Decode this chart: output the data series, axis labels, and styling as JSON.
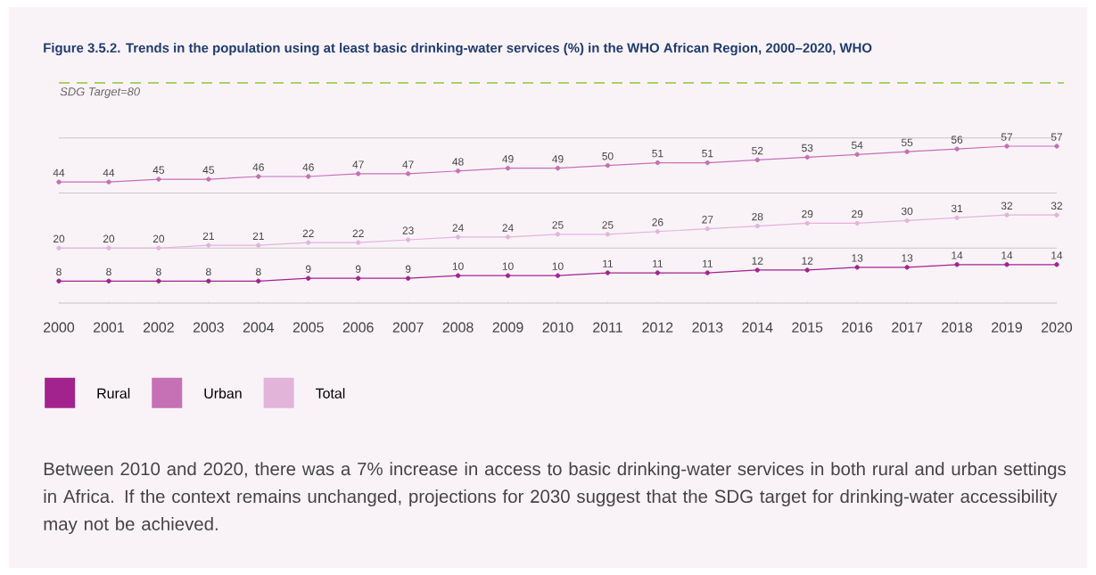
{
  "chart_data": {
    "type": "line",
    "title": "Figure 3.5.2. Trends in the population using at least basic drinking-water services (%) in the WHO African Region, 2000–2020, WHO",
    "x": [
      2000,
      2001,
      2002,
      2003,
      2004,
      2005,
      2006,
      2007,
      2008,
      2009,
      2010,
      2011,
      2012,
      2013,
      2014,
      2015,
      2016,
      2017,
      2018,
      2019,
      2020
    ],
    "series": [
      {
        "name": "Rural",
        "color": "#a3238e",
        "values": [
          8,
          8,
          8,
          8,
          8,
          9,
          9,
          9,
          10,
          10,
          10,
          11,
          11,
          11,
          12,
          12,
          13,
          13,
          14,
          14,
          14
        ]
      },
      {
        "name": "Urban",
        "color": "#c670b5",
        "values": [
          44,
          44,
          45,
          45,
          46,
          46,
          47,
          47,
          48,
          49,
          49,
          50,
          51,
          51,
          52,
          53,
          54,
          55,
          56,
          57,
          57
        ]
      },
      {
        "name": "Total",
        "color": "#e2b4da",
        "values": [
          20,
          20,
          20,
          21,
          21,
          22,
          22,
          23,
          24,
          24,
          25,
          25,
          26,
          27,
          28,
          29,
          29,
          30,
          31,
          32,
          32
        ]
      }
    ],
    "xlim": [
      2000,
      2020
    ],
    "xticks": [
      2000,
      2001,
      2002,
      2003,
      2004,
      2005,
      2006,
      2007,
      2008,
      2009,
      2010,
      2011,
      2012,
      2013,
      2014,
      2015,
      2016,
      2017,
      2018,
      2019,
      2020
    ],
    "ylim": [
      0,
      80
    ],
    "yticks": [
      {
        "value": 0,
        "label": null
      },
      {
        "value": 20,
        "label": null
      },
      {
        "value": 40,
        "label": null
      },
      {
        "value": 60,
        "label": null
      }
    ],
    "tick_labels": "x",
    "grid": "y",
    "legend": "bottom",
    "marker": "circle",
    "line_style": "solid",
    "data_labels": true,
    "ref_lines": [
      {
        "axis": "y",
        "value": 80,
        "label": "SDG Target=80",
        "color": "#8dc63f",
        "line_style": "dashed"
      }
    ],
    "annotations": [
      "Between 2010 and 2020, there was a 7% increase in access to basic drinking-water services in both rural and urban settings in Africa. If the context remains unchanged, projections for 2030 suggest that the SDG target for drinking-water accessibility may not be achieved."
    ]
  }
}
